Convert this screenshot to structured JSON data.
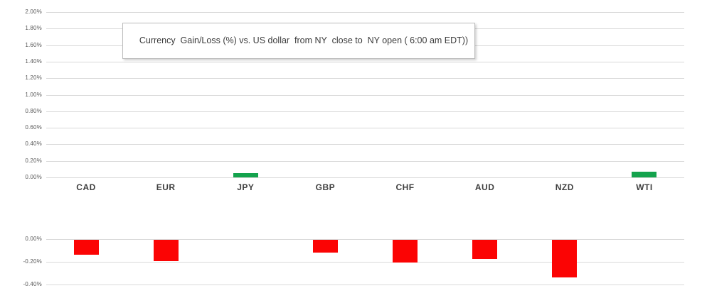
{
  "chart_data": {
    "type": "bar",
    "title": "Currency  Gain/Loss (%) vs. US dollar  from NY  close to  NY open ( 6:00 am EDT))",
    "categories": [
      "CAD",
      "EUR",
      "JPY",
      "GBP",
      "CHF",
      "AUD",
      "NZD",
      "WTI"
    ],
    "values": [
      -0.13,
      -0.19,
      0.05,
      -0.11,
      -0.2,
      -0.17,
      -0.33,
      0.07
    ],
    "unit": "%",
    "xlabel": "",
    "ylabel": "",
    "legend": false,
    "grid": true,
    "upper_axis": {
      "max": 2.0,
      "min": 0.0,
      "step": 0.2,
      "tick_labels": [
        "2.00%",
        "1.80%",
        "1.60%",
        "1.40%",
        "1.20%",
        "1.00%",
        "0.80%",
        "0.60%",
        "0.40%",
        "0.20%",
        "0.00%"
      ]
    },
    "lower_axis": {
      "max": 0.0,
      "min": -0.4,
      "step": 0.2,
      "tick_labels": [
        "0.00%",
        "-0.20%",
        "-0.40%"
      ]
    },
    "colors": {
      "positive_bar": "#14a34d",
      "negative_bar": "#fb0404",
      "gridline": "#d9d9d9",
      "tick_text": "#595959",
      "category_text": "#3f3f3f",
      "title_text": "#3b3b3b"
    }
  }
}
